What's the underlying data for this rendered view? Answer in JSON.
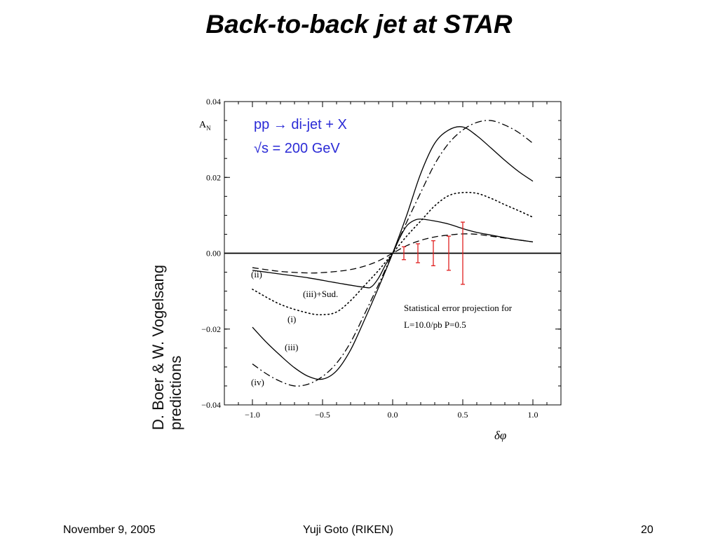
{
  "slide": {
    "title": "Back-to-back jet at STAR",
    "side_credit_line1": "D. Boer & W. Vogelsang",
    "side_credit_line2": "predictions",
    "footer_left": "November 9, 2005",
    "footer_center": "Yuji Goto (RIKEN)",
    "footer_right": "20"
  },
  "chart_data": {
    "type": "line",
    "title": "",
    "xlabel": "δφ",
    "ylabel": "A",
    "ylabel_subscript": "N",
    "xlim": [
      -1.2,
      1.2
    ],
    "ylim": [
      -0.04,
      0.04
    ],
    "x_ticks": [
      -1.0,
      -0.5,
      0.0,
      0.5,
      1.0
    ],
    "x_tick_labels": [
      "−1.0",
      "−0.5",
      "0.0",
      "0.5",
      "1.0"
    ],
    "y_ticks": [
      -0.04,
      -0.02,
      0.0,
      0.02,
      0.04
    ],
    "y_tick_labels": [
      "−0.04",
      "−0.02",
      "0.00",
      "0.02",
      "0.04"
    ],
    "process_line1": "pp → di-jet + X",
    "process_line2": "√s = 200 GeV",
    "process_color": "#2b2bd6",
    "error_note_line1": "Statistical error projection for",
    "error_note_line2": "L=10.0/pb  P=0.5",
    "series": [
      {
        "label": "(i)",
        "style": "dotted",
        "x": [
          -1.0,
          -0.8,
          -0.6,
          -0.5,
          -0.4,
          -0.3,
          -0.2,
          -0.1,
          0.0,
          0.1,
          0.2,
          0.3,
          0.4,
          0.5,
          0.6,
          0.7,
          0.8,
          0.9,
          1.0
        ],
        "y": [
          -0.0095,
          -0.0135,
          -0.0158,
          -0.0162,
          -0.0155,
          -0.0125,
          -0.0085,
          -0.0045,
          0.0,
          0.0045,
          0.0085,
          0.0125,
          0.0152,
          0.016,
          0.0158,
          0.0145,
          0.0128,
          0.0112,
          0.0095
        ]
      },
      {
        "label": "(ii)",
        "style": "dashed",
        "x": [
          -1.0,
          -0.8,
          -0.6,
          -0.5,
          -0.4,
          -0.3,
          -0.2,
          -0.1,
          0.0,
          0.1,
          0.2,
          0.3,
          0.4,
          0.5,
          0.6,
          0.7,
          0.8,
          0.9,
          1.0
        ],
        "y": [
          -0.0038,
          -0.0048,
          -0.0052,
          -0.0051,
          -0.0048,
          -0.0043,
          -0.0034,
          -0.002,
          0.0,
          0.002,
          0.0034,
          0.0043,
          0.0048,
          0.0051,
          0.005,
          0.0045,
          0.004,
          0.0035,
          0.003
        ]
      },
      {
        "label": "(iii)",
        "style": "solid",
        "x": [
          -1.0,
          -0.9,
          -0.8,
          -0.7,
          -0.6,
          -0.5,
          -0.4,
          -0.3,
          -0.2,
          -0.1,
          0.0,
          0.1,
          0.2,
          0.3,
          0.4,
          0.5,
          0.6,
          0.7,
          0.8,
          0.9,
          1.0
        ],
        "y": [
          -0.0195,
          -0.0235,
          -0.027,
          -0.0302,
          -0.0325,
          -0.0332,
          -0.031,
          -0.0255,
          -0.0175,
          -0.009,
          0.0,
          0.01,
          0.021,
          0.029,
          0.0325,
          0.0333,
          0.031,
          0.0278,
          0.0245,
          0.0215,
          0.019
        ]
      },
      {
        "label": "(iii)+Sud.",
        "style": "solid",
        "x": [
          -1.0,
          -0.8,
          -0.6,
          -0.4,
          -0.2,
          -0.15,
          -0.1,
          -0.05,
          0.0,
          0.05,
          0.1,
          0.15,
          0.2,
          0.3,
          0.4,
          0.5,
          0.6,
          0.7,
          0.8,
          0.9,
          1.0
        ],
        "y": [
          -0.0045,
          -0.0055,
          -0.0065,
          -0.0078,
          -0.009,
          -0.0088,
          -0.0065,
          -0.003,
          0.0,
          0.004,
          0.0072,
          0.0086,
          0.009,
          0.0085,
          0.0077,
          0.0065,
          0.0055,
          0.0048,
          0.0041,
          0.0035,
          0.003
        ]
      },
      {
        "label": "(iv)",
        "style": "dashdot",
        "x": [
          -1.0,
          -0.9,
          -0.8,
          -0.7,
          -0.6,
          -0.5,
          -0.4,
          -0.3,
          -0.2,
          -0.1,
          0.0,
          0.1,
          0.2,
          0.3,
          0.4,
          0.5,
          0.6,
          0.7,
          0.8,
          0.9,
          1.0
        ],
        "y": [
          -0.0292,
          -0.0318,
          -0.0338,
          -0.035,
          -0.0345,
          -0.0325,
          -0.029,
          -0.0235,
          -0.016,
          -0.0082,
          0.0,
          0.0082,
          0.016,
          0.0235,
          0.029,
          0.0325,
          0.0345,
          0.035,
          0.0338,
          0.0318,
          0.029
        ]
      }
    ],
    "error_bars": {
      "color": "#e02020",
      "x": [
        0.08,
        0.18,
        0.29,
        0.4,
        0.5
      ],
      "y": [
        0.0,
        0.0,
        0.0,
        0.0,
        0.0
      ],
      "err": [
        0.0017,
        0.0025,
        0.0033,
        0.0045,
        0.0082
      ]
    }
  }
}
